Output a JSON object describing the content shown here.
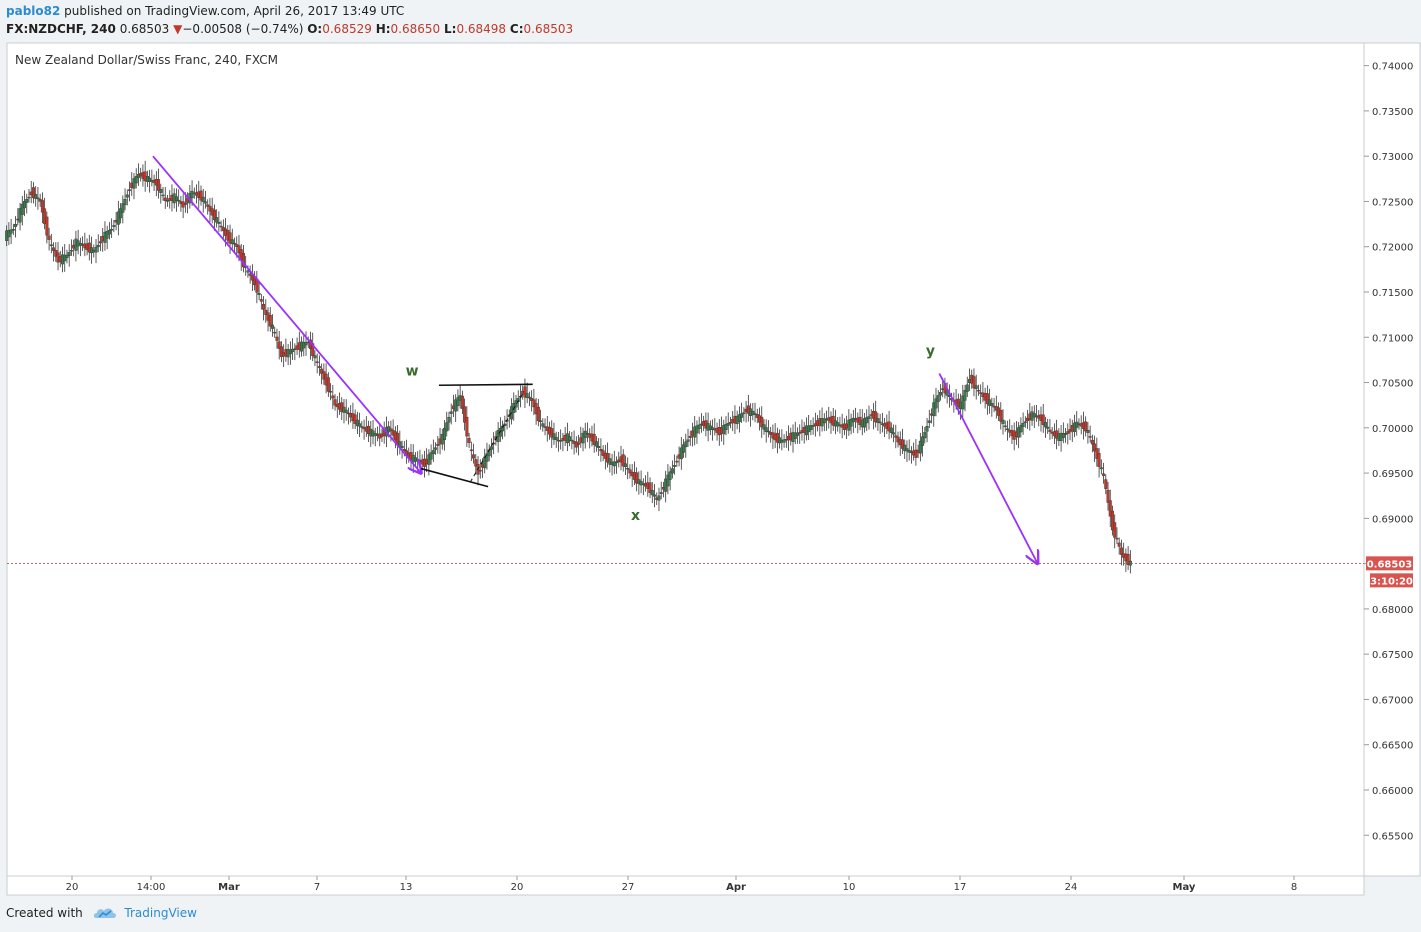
{
  "header": {
    "user": "pablo82",
    "published_text": "published on TradingView.com, April 26, 2017 13:49 UTC",
    "symbol": "FX:NZDCHF, 240",
    "last": "0.68503",
    "change_arrow": "▼",
    "change": "−0.00508 (−0.74%)",
    "open_label": "O:",
    "open": "0.68529",
    "high_label": "H:",
    "high": "0.68650",
    "low_label": "L:",
    "low": "0.68498",
    "close_label": "C:",
    "close": "0.68503"
  },
  "footer": {
    "created_with": "Created with",
    "brand": "TradingView",
    "logo_icon": "tradingview-cloud-icon"
  },
  "colors": {
    "up": "#3c7a4e",
    "down": "#c0392b",
    "trend_arrow": "#9b30ff",
    "wave_label": "#3a6b2e",
    "price_line": "#c0392b",
    "price_tag_bg": "#d9534f"
  },
  "chart_data": {
    "type": "candlestick",
    "title": "New Zealand Dollar/Swiss Franc, 240, FXCM",
    "ylim": [
      0.6505,
      0.7425
    ],
    "y_ticks": [
      "0.74000",
      "0.73500",
      "0.73000",
      "0.72500",
      "0.72000",
      "0.71500",
      "0.71000",
      "0.70500",
      "0.70000",
      "0.69500",
      "0.69000",
      "0.68500",
      "0.68000",
      "0.67500",
      "0.67000",
      "0.66500",
      "0.66000",
      "0.65500"
    ],
    "x_ticks": [
      "20",
      "14:00",
      "Mar",
      "7",
      "13",
      "20",
      "27",
      "Apr",
      "10",
      "17",
      "24",
      "May",
      "8"
    ],
    "bold_x_ticks": [
      "Mar",
      "Apr",
      "May"
    ],
    "current_price": {
      "value": "0.68503",
      "countdown": "3:10:20"
    },
    "series_close": [
      0.722,
      0.7245,
      0.726,
      0.725,
      0.7205,
      0.7185,
      0.719,
      0.7205,
      0.72,
      0.7195,
      0.721,
      0.722,
      0.724,
      0.7265,
      0.728,
      0.7275,
      0.727,
      0.725,
      0.7255,
      0.7245,
      0.726,
      0.7255,
      0.724,
      0.7225,
      0.721,
      0.72,
      0.7175,
      0.716,
      0.713,
      0.711,
      0.708,
      0.7085,
      0.709,
      0.7095,
      0.707,
      0.705,
      0.7025,
      0.702,
      0.701,
      0.7,
      0.6995,
      0.699,
      0.7,
      0.6985,
      0.697,
      0.6965,
      0.696,
      0.6975,
      0.699,
      0.702,
      0.7035,
      0.698,
      0.695,
      0.697,
      0.699,
      0.7005,
      0.7025,
      0.704,
      0.703,
      0.7005,
      0.6995,
      0.6985,
      0.699,
      0.698,
      0.6995,
      0.6985,
      0.697,
      0.696,
      0.6965,
      0.695,
      0.694,
      0.6935,
      0.692,
      0.694,
      0.696,
      0.698,
      0.6995,
      0.7005,
      0.7,
      0.6995,
      0.7005,
      0.701,
      0.702,
      0.7015,
      0.7,
      0.699,
      0.6985,
      0.699,
      0.6995,
      0.7,
      0.7005,
      0.701,
      0.7005,
      0.7,
      0.701,
      0.7005,
      0.7015,
      0.7005,
      0.7,
      0.6985,
      0.6975,
      0.697,
      0.6995,
      0.7025,
      0.7045,
      0.703,
      0.7025,
      0.7055,
      0.704,
      0.703,
      0.702,
      0.7,
      0.699,
      0.7005,
      0.7015,
      0.701,
      0.6995,
      0.699,
      0.6995,
      0.7005,
      0.7,
      0.6975,
      0.6945,
      0.689,
      0.686,
      0.685
    ],
    "annotations": [
      {
        "text": "w",
        "x_index": 45,
        "y": 0.7058
      },
      {
        "text": "x",
        "x_index": 70,
        "y": 0.6898
      },
      {
        "text": "y",
        "x_index": 103,
        "y": 0.708
      }
    ],
    "trend_arrows": [
      {
        "from_index": 16,
        "from_y": 0.73,
        "to_index": 46,
        "to_y": 0.695
      },
      {
        "from_index": 104,
        "from_y": 0.706,
        "to_index": 115,
        "to_y": 0.685
      }
    ]
  }
}
